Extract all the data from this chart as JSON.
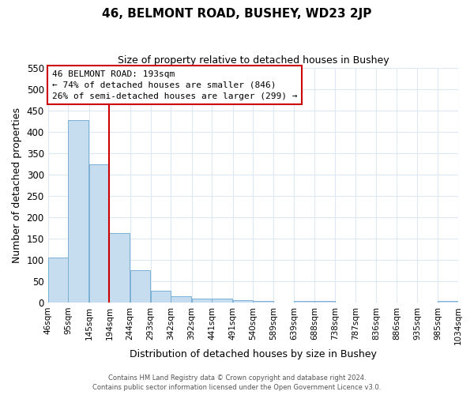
{
  "title": "46, BELMONT ROAD, BUSHEY, WD23 2JP",
  "subtitle": "Size of property relative to detached houses in Bushey",
  "xlabel": "Distribution of detached houses by size in Bushey",
  "ylabel": "Number of detached properties",
  "bar_color": "#c5ddef",
  "bar_edge_color": "#7ab0d4",
  "vline_color": "#cc0000",
  "vline_x": 194,
  "bins": [
    46,
    95,
    145,
    194,
    244,
    293,
    342,
    392,
    441,
    491,
    540,
    589,
    639,
    688,
    738,
    787,
    836,
    886,
    935,
    985,
    1034
  ],
  "bin_labels": [
    "46sqm",
    "95sqm",
    "145sqm",
    "194sqm",
    "244sqm",
    "293sqm",
    "342sqm",
    "392sqm",
    "441sqm",
    "491sqm",
    "540sqm",
    "589sqm",
    "639sqm",
    "688sqm",
    "738sqm",
    "787sqm",
    "836sqm",
    "886sqm",
    "935sqm",
    "985sqm",
    "1034sqm"
  ],
  "counts": [
    105,
    428,
    323,
    162,
    75,
    27,
    14,
    10,
    10,
    5,
    3,
    0,
    3,
    3,
    0,
    0,
    0,
    0,
    0,
    3
  ],
  "ylim": [
    0,
    550
  ],
  "yticks": [
    0,
    50,
    100,
    150,
    200,
    250,
    300,
    350,
    400,
    450,
    500,
    550
  ],
  "annotation_title": "46 BELMONT ROAD: 193sqm",
  "annotation_line1": "← 74% of detached houses are smaller (846)",
  "annotation_line2": "26% of semi-detached houses are larger (299) →",
  "annotation_box_color": "#ffffff",
  "annotation_box_edge": "#cc0000",
  "footer1": "Contains HM Land Registry data © Crown copyright and database right 2024.",
  "footer2": "Contains public sector information licensed under the Open Government Licence v3.0.",
  "background_color": "#ffffff",
  "grid_color": "#dce9f5"
}
